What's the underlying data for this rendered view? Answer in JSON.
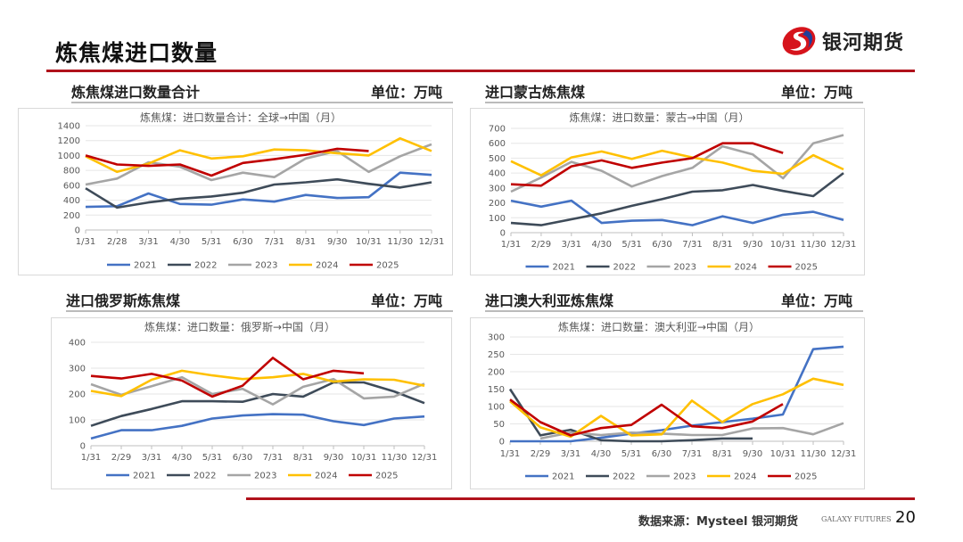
{
  "header": {
    "title": "炼焦煤进口数量",
    "logo_text": "银河期货"
  },
  "panels": [
    {
      "label": "炼焦煤进口数量合计",
      "unit": "单位：万吨"
    },
    {
      "label": "进口蒙古炼焦煤",
      "unit": "单位：万吨"
    },
    {
      "label": "进口俄罗斯炼焦煤",
      "unit": "单位：万吨"
    },
    {
      "label": "进口澳大利亚炼焦煤",
      "unit": "单位：万吨"
    }
  ],
  "footer": {
    "source": "数据来源：Mysteel 银河期货",
    "brand": "GALAXY FUTURES",
    "page": "20"
  },
  "colors": {
    "2021": "#4472C4",
    "2022": "#3E4B59",
    "2023": "#A5A5A5",
    "2024": "#FFC000",
    "2025": "#C00000",
    "accent": "#B0121B"
  },
  "chart_data": [
    {
      "type": "line",
      "title": "炼焦煤：进口数量合计：全球→中国（月）",
      "categories": [
        "1/31",
        "2/28",
        "3/31",
        "4/30",
        "5/31",
        "6/30",
        "7/31",
        "8/31",
        "9/30",
        "10/31",
        "11/30",
        "12/31"
      ],
      "ylim": [
        0,
        1400
      ],
      "yticks": [
        0,
        200,
        400,
        600,
        800,
        1000,
        1200,
        1400
      ],
      "grid": true,
      "legend": "bottom",
      "series": [
        {
          "name": "2021",
          "values": [
            310,
            320,
            490,
            350,
            340,
            410,
            380,
            470,
            430,
            440,
            770,
            740
          ]
        },
        {
          "name": "2022",
          "values": [
            560,
            300,
            370,
            420,
            450,
            500,
            610,
            640,
            680,
            620,
            570,
            640
          ]
        },
        {
          "name": "2023",
          "values": [
            610,
            690,
            910,
            850,
            670,
            770,
            710,
            960,
            1060,
            780,
            990,
            1150
          ]
        },
        {
          "name": "2024",
          "values": [
            990,
            780,
            890,
            1070,
            960,
            990,
            1080,
            1070,
            1030,
            1000,
            1230,
            1060
          ]
        },
        {
          "name": "2025",
          "values": [
            1000,
            880,
            860,
            880,
            730,
            900,
            950,
            1010,
            1090,
            1060,
            null,
            null
          ]
        }
      ]
    },
    {
      "type": "line",
      "title": "炼焦煤：进口数量：蒙古→中国（月）",
      "categories": [
        "1/31",
        "2/29",
        "3/31",
        "4/30",
        "5/31",
        "6/30",
        "7/31",
        "8/31",
        "9/30",
        "10/31",
        "11/30",
        "12/31"
      ],
      "ylim": [
        0,
        700
      ],
      "yticks": [
        0,
        100,
        200,
        300,
        400,
        500,
        600,
        700
      ],
      "grid": true,
      "legend": "bottom",
      "series": [
        {
          "name": "2021",
          "values": [
            215,
            175,
            215,
            65,
            80,
            85,
            50,
            110,
            65,
            120,
            140,
            85
          ]
        },
        {
          "name": "2022",
          "values": [
            65,
            50,
            90,
            130,
            180,
            225,
            275,
            285,
            320,
            280,
            245,
            400
          ]
        },
        {
          "name": "2023",
          "values": [
            275,
            370,
            475,
            415,
            310,
            380,
            435,
            580,
            525,
            365,
            600,
            655
          ]
        },
        {
          "name": "2024",
          "values": [
            480,
            385,
            505,
            545,
            495,
            550,
            505,
            470,
            415,
            395,
            520,
            425
          ]
        },
        {
          "name": "2025",
          "values": [
            325,
            315,
            445,
            485,
            435,
            470,
            500,
            600,
            600,
            535,
            null,
            null
          ]
        }
      ]
    },
    {
      "type": "line",
      "title": "炼焦煤：进口数量：俄罗斯→中国（月）",
      "categories": [
        "1/31",
        "2/29",
        "3/31",
        "4/30",
        "5/31",
        "6/30",
        "7/31",
        "8/31",
        "9/30",
        "10/31",
        "11/30",
        "12/31"
      ],
      "ylim": [
        0,
        400
      ],
      "yticks": [
        0,
        100,
        200,
        300,
        400
      ],
      "grid": true,
      "legend": "bottom",
      "series": [
        {
          "name": "2021",
          "values": [
            28,
            60,
            60,
            77,
            105,
            117,
            122,
            120,
            95,
            80,
            105,
            113
          ]
        },
        {
          "name": "2022",
          "values": [
            77,
            115,
            142,
            172,
            172,
            170,
            200,
            190,
            245,
            245,
            210,
            165
          ]
        },
        {
          "name": "2023",
          "values": [
            238,
            197,
            230,
            265,
            200,
            220,
            160,
            228,
            258,
            183,
            190,
            240
          ]
        },
        {
          "name": "2024",
          "values": [
            212,
            192,
            255,
            290,
            272,
            258,
            265,
            278,
            248,
            257,
            255,
            232
          ]
        },
        {
          "name": "2025",
          "values": [
            270,
            260,
            278,
            252,
            190,
            232,
            340,
            257,
            290,
            280,
            null,
            null
          ]
        }
      ]
    },
    {
      "type": "line",
      "title": "炼焦煤：进口数量：澳大利亚→中国（月）",
      "categories": [
        "1/31",
        "2/29",
        "3/31",
        "4/30",
        "5/31",
        "6/30",
        "7/31",
        "8/31",
        "9/30",
        "10/31",
        "11/30",
        "12/31"
      ],
      "ylim": [
        0,
        300
      ],
      "yticks": [
        0,
        50,
        100,
        150,
        200,
        250,
        300
      ],
      "grid": true,
      "legend": "bottom",
      "series": [
        {
          "name": "2021",
          "values": [
            0,
            0,
            0,
            10,
            22,
            32,
            45,
            55,
            65,
            77,
            265,
            272
          ]
        },
        {
          "name": "2022",
          "values": [
            150,
            17,
            33,
            3,
            0,
            0,
            3,
            8,
            8,
            null,
            null,
            null
          ]
        },
        {
          "name": "2023",
          "values": [
            null,
            8,
            25,
            18,
            25,
            22,
            18,
            18,
            37,
            38,
            20,
            52
          ]
        },
        {
          "name": "2024",
          "values": [
            115,
            40,
            13,
            73,
            17,
            20,
            117,
            55,
            107,
            135,
            180,
            162
          ]
        },
        {
          "name": "2025",
          "values": [
            120,
            55,
            17,
            38,
            47,
            105,
            43,
            38,
            57,
            107,
            null,
            null
          ]
        }
      ]
    }
  ]
}
